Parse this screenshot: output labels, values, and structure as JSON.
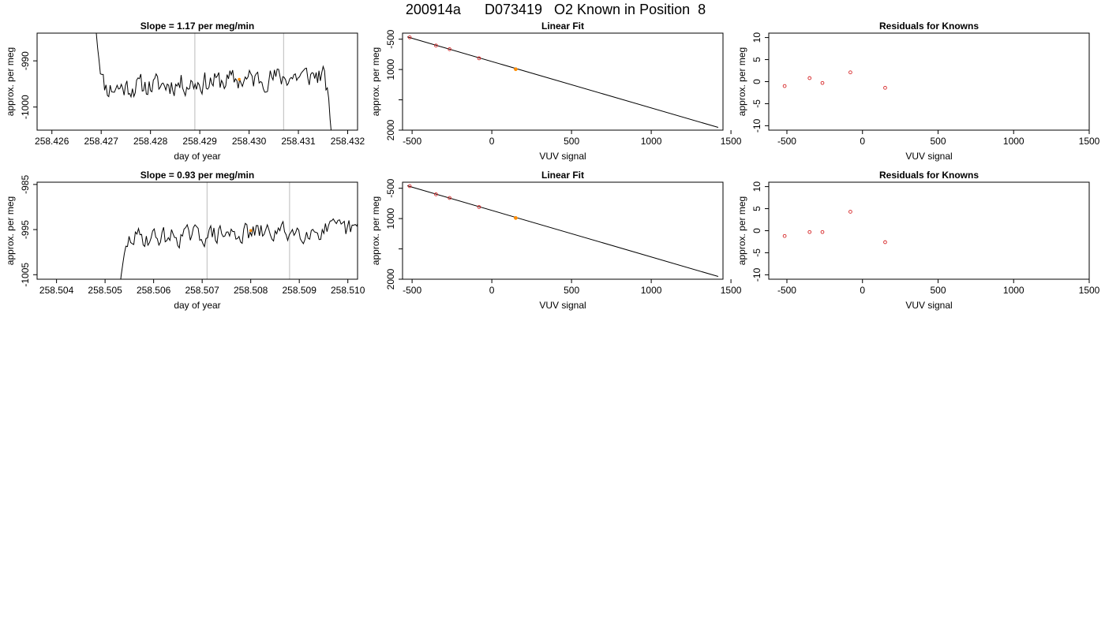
{
  "page_title": "200914a      D073419   O2 Known in Position  8",
  "colors": {
    "trace": "#000000",
    "marker": "#d62728",
    "highlight": "#ff8c00",
    "guide": "#bbbbbb",
    "fit": "#000000"
  },
  "chart_data": [
    {
      "type": "line",
      "title": "Slope =  1.17  per meg/min",
      "xlabel": "day of year",
      "ylabel": "approx. per meg",
      "xlim": [
        258.4257,
        258.4322
      ],
      "ylim": [
        -1005,
        -984
      ],
      "xticks": [
        258.426,
        258.427,
        258.428,
        258.429,
        258.43,
        258.431,
        258.432
      ],
      "xtick_labels": [
        "258.426",
        "258.427",
        "258.428",
        "258.429",
        "258.430",
        "258.431",
        "258.432"
      ],
      "yticks": [
        -990,
        -1000
      ],
      "ytick_labels": [
        "-990",
        "-1000"
      ],
      "vlines": [
        258.4289,
        258.4307
      ],
      "series": [
        {
          "x0": 258.4269,
          "x1": 258.4317,
          "start": -984,
          "end": -1010,
          "level": -994.5,
          "slope": 3.2,
          "noise": 2.2,
          "seed": 11
        }
      ],
      "highlight": {
        "x": 258.4298,
        "y": -994.0
      }
    },
    {
      "type": "scatter",
      "title": "Linear Fit",
      "xlabel": "VUV signal",
      "ylabel": "approx. per meg",
      "xlim": [
        -560,
        1450
      ],
      "ylim": [
        -2000,
        -400
      ],
      "xticks": [
        -500,
        0,
        500,
        1000,
        1500
      ],
      "xtick_labels": [
        "-500",
        "0",
        "500",
        "1000",
        "1500"
      ],
      "yticks": [
        -500,
        -1000,
        -2000
      ],
      "ytick_labels": [
        "-500",
        "1000",
        "2000"
      ],
      "yminor": [
        -1500
      ],
      "points": [
        {
          "x": -515,
          "y": -470
        },
        {
          "x": -350,
          "y": -605
        },
        {
          "x": -265,
          "y": -665
        },
        {
          "x": -80,
          "y": -815
        },
        {
          "x": 150,
          "y": -995,
          "highlight": true
        }
      ],
      "fit": {
        "x": [
          -530,
          1420
        ],
        "y": [
          -462,
          -1955
        ]
      }
    },
    {
      "type": "scatter",
      "title": "Residuals for Knowns",
      "xlabel": "VUV signal",
      "ylabel": "approx. per meg",
      "xlim": [
        -620,
        1500
      ],
      "ylim": [
        -11,
        11
      ],
      "xticks": [
        -500,
        0,
        500,
        1000,
        1500
      ],
      "xtick_labels": [
        "-500",
        "0",
        "500",
        "1000",
        "1500"
      ],
      "yticks": [
        10,
        5,
        0,
        -5,
        -10
      ],
      "ytick_labels": [
        "10",
        "5",
        "0",
        "-5",
        "-10"
      ],
      "points": [
        {
          "x": -515,
          "y": -1.0
        },
        {
          "x": -350,
          "y": 0.8
        },
        {
          "x": -265,
          "y": -0.3
        },
        {
          "x": -80,
          "y": 2.1
        },
        {
          "x": 150,
          "y": -1.4
        }
      ]
    },
    {
      "type": "line",
      "title": "Slope =  0.93  per meg/min",
      "xlabel": "day of year",
      "ylabel": "approx. per meg",
      "xlim": [
        258.5036,
        258.5102
      ],
      "ylim": [
        -1006,
        -984.5
      ],
      "xticks": [
        258.504,
        258.505,
        258.506,
        258.507,
        258.508,
        258.509,
        258.51
      ],
      "xtick_labels": [
        "258.504",
        "258.505",
        "258.506",
        "258.507",
        "258.508",
        "258.509",
        "258.510"
      ],
      "yticks": [
        -985,
        -995,
        -1005
      ],
      "ytick_labels": [
        "-985",
        "-995",
        "-1005"
      ],
      "vlines": [
        258.5071,
        258.5088
      ],
      "series": [
        {
          "x0": 258.5053,
          "x1": 258.5108,
          "start": -1008,
          "end": -975,
          "level": -995.8,
          "slope": 2.4,
          "noise": 2.0,
          "seed": 29
        }
      ],
      "highlight": {
        "x": 258.508,
        "y": -995.2
      }
    },
    {
      "type": "scatter",
      "title": "Linear Fit",
      "xlabel": "VUV signal",
      "ylabel": "approx. per meg",
      "xlim": [
        -560,
        1450
      ],
      "ylim": [
        -2000,
        -400
      ],
      "xticks": [
        -500,
        0,
        500,
        1000,
        1500
      ],
      "xtick_labels": [
        "-500",
        "0",
        "500",
        "1000",
        "1500"
      ],
      "yticks": [
        -500,
        -1000,
        -2000
      ],
      "ytick_labels": [
        "-500",
        "1000",
        "2000"
      ],
      "yminor": [
        -1500
      ],
      "points": [
        {
          "x": -515,
          "y": -465
        },
        {
          "x": -350,
          "y": -600
        },
        {
          "x": -265,
          "y": -660
        },
        {
          "x": -80,
          "y": -810
        },
        {
          "x": 150,
          "y": -990,
          "highlight": true
        }
      ],
      "fit": {
        "x": [
          -530,
          1420
        ],
        "y": [
          -458,
          -1955
        ]
      }
    },
    {
      "type": "scatter",
      "title": "Residuals for Knowns",
      "xlabel": "VUV signal",
      "ylabel": "approx. per meg",
      "xlim": [
        -620,
        1500
      ],
      "ylim": [
        -11,
        11
      ],
      "xticks": [
        -500,
        0,
        500,
        1000,
        1500
      ],
      "xtick_labels": [
        "-500",
        "0",
        "500",
        "1000",
        "1500"
      ],
      "yticks": [
        10,
        5,
        0,
        -5,
        -10
      ],
      "ytick_labels": [
        "10",
        "5",
        "0",
        "-5",
        "-10"
      ],
      "points": [
        {
          "x": -515,
          "y": -1.2
        },
        {
          "x": -350,
          "y": -0.3
        },
        {
          "x": -265,
          "y": -0.3
        },
        {
          "x": -80,
          "y": 4.3
        },
        {
          "x": 150,
          "y": -2.6
        }
      ]
    }
  ]
}
